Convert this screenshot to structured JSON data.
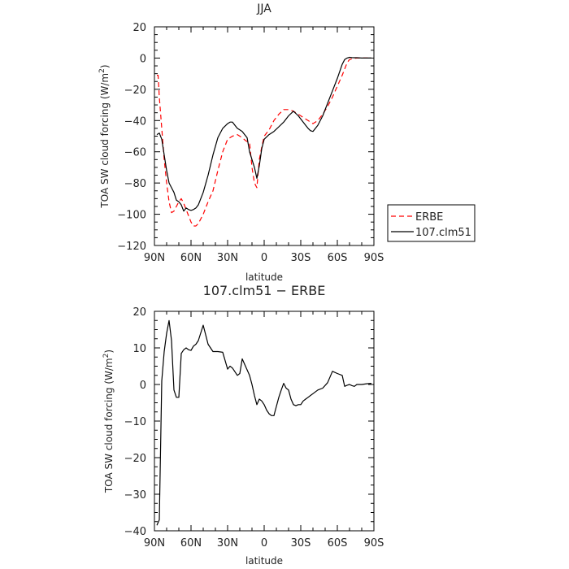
{
  "chart_data": [
    {
      "type": "line",
      "title": "JJA",
      "xlabel": "latitude",
      "ylabel_prefix": "TOA SW cloud forcing (W/m",
      "ylabel_sup": "2",
      "ylabel_suffix": ")",
      "xlim": [
        90,
        -90
      ],
      "ylim": [
        -120,
        20
      ],
      "xticks": [
        90,
        60,
        30,
        0,
        -30,
        -60,
        -90
      ],
      "xticklabels": [
        "90N",
        "60N",
        "30N",
        "0",
        "30S",
        "60S",
        "90S"
      ],
      "yticks": [
        20,
        0,
        -20,
        -40,
        -60,
        -80,
        -100,
        -120
      ],
      "yticklabels": [
        "20",
        "0",
        "−20",
        "−40",
        "−60",
        "−80",
        "−100",
        "−120"
      ],
      "legend": "outside-right",
      "series": [
        {
          "name": "ERBE",
          "color": "#ff0000",
          "dash": "dashed",
          "x": [
            88,
            87,
            86,
            84,
            82,
            80,
            78,
            76,
            74,
            72,
            70,
            68,
            66,
            64,
            62,
            60,
            58,
            56,
            54,
            50,
            46,
            42,
            38,
            34,
            30,
            26,
            22,
            18,
            15,
            12,
            10,
            8,
            6,
            4,
            2,
            0,
            -4,
            -8,
            -12,
            -16,
            -20,
            -24,
            -28,
            -30,
            -32,
            -34,
            -36,
            -38,
            -40,
            -44,
            -48,
            -52,
            -56,
            -60,
            -64,
            -66,
            -68,
            -70,
            -72,
            -74,
            -76,
            -78,
            -80,
            -84,
            -88
          ],
          "y": [
            -11,
            -11,
            -25,
            -45,
            -65,
            -80,
            -92,
            -99,
            -98,
            -95,
            -92,
            -90,
            -93,
            -97,
            -101,
            -105,
            -107.5,
            -107.5,
            -106,
            -100,
            -92,
            -85,
            -72,
            -60,
            -52,
            -50,
            -49,
            -51,
            -53,
            -54,
            -70,
            -80,
            -83,
            -65,
            -57,
            -50,
            -46,
            -40,
            -36,
            -33,
            -33,
            -34,
            -36,
            -37,
            -38,
            -39,
            -40,
            -41,
            -42,
            -40,
            -36,
            -31,
            -25,
            -18,
            -11,
            -7,
            -3,
            -1,
            -0.5,
            -0.2,
            0,
            0,
            0,
            0,
            0
          ]
        },
        {
          "name": "107.clm51",
          "color": "#000000",
          "dash": "solid",
          "x": [
            88,
            86,
            84,
            82,
            80,
            78,
            76,
            74,
            72,
            70,
            68,
            66,
            64,
            62,
            60,
            58,
            56,
            54,
            50,
            46,
            42,
            38,
            34,
            30,
            28,
            26,
            24,
            22,
            20,
            18,
            16,
            14,
            12,
            10,
            8,
            6,
            4,
            2,
            0,
            -4,
            -8,
            -12,
            -16,
            -20,
            -24,
            -28,
            -30,
            -32,
            -34,
            -36,
            -38,
            -40,
            -44,
            -48,
            -52,
            -56,
            -60,
            -64,
            -66,
            -68,
            -70,
            -72,
            -74,
            -76,
            -80,
            -84,
            -88
          ],
          "y": [
            -49,
            -48,
            -52,
            -62,
            -72,
            -80,
            -83,
            -86,
            -91,
            -92,
            -94,
            -98,
            -96,
            -97,
            -97.5,
            -97,
            -96,
            -94,
            -86,
            -75,
            -62,
            -51,
            -45,
            -42,
            -41,
            -41,
            -43,
            -45,
            -46,
            -47,
            -49,
            -51,
            -60,
            -65,
            -70,
            -77,
            -69,
            -58,
            -52,
            -49,
            -47,
            -44,
            -41,
            -37,
            -34,
            -37,
            -39,
            -41,
            -43,
            -45,
            -46.5,
            -47,
            -43,
            -37,
            -29,
            -21,
            -13,
            -4,
            -1,
            0,
            0.5,
            0.3,
            0.2,
            0.2,
            0,
            0,
            0
          ]
        }
      ]
    },
    {
      "type": "line",
      "title": "107.clm51 − ERBE",
      "xlabel": "latitude",
      "ylabel_prefix": "TOA SW cloud forcing (W/m",
      "ylabel_sup": "2",
      "ylabel_suffix": ")",
      "xlim": [
        90,
        -90
      ],
      "ylim": [
        -40,
        20
      ],
      "xticks": [
        90,
        60,
        30,
        0,
        -30,
        -60,
        -90
      ],
      "xticklabels": [
        "90N",
        "60N",
        "30N",
        "0",
        "30S",
        "60S",
        "90S"
      ],
      "yticks": [
        20,
        10,
        0,
        -10,
        -20,
        -30,
        -40
      ],
      "yticklabels": [
        "20",
        "10",
        "0",
        "−10",
        "−20",
        "−30",
        "−40"
      ],
      "series": [
        {
          "name": "",
          "color": "#000000",
          "dash": "solid",
          "x": [
            88,
            86,
            84,
            82,
            80,
            78,
            76,
            74,
            72,
            70,
            68,
            66,
            64,
            62,
            60,
            58,
            56,
            54,
            50,
            46,
            42,
            38,
            34,
            30,
            28,
            26,
            24,
            22,
            20,
            18,
            16,
            14,
            12,
            10,
            8,
            6,
            4,
            2,
            0,
            -2,
            -4,
            -6,
            -8,
            -10,
            -12,
            -14,
            -16,
            -18,
            -20,
            -22,
            -24,
            -26,
            -28,
            -30,
            -32,
            -34,
            -36,
            -40,
            -44,
            -48,
            -52,
            -56,
            -60,
            -64,
            -66,
            -68,
            -70,
            -72,
            -74,
            -76,
            -78,
            -80,
            -84,
            -88
          ],
          "y": [
            -38.5,
            -37,
            1,
            9,
            14,
            17.5,
            12,
            -1.5,
            -3.5,
            -3.5,
            8.5,
            9.5,
            10,
            9.5,
            9.3,
            10.5,
            11,
            12,
            16.2,
            11,
            9,
            9,
            8.8,
            4.2,
            5,
            4.5,
            3.5,
            2.5,
            3,
            7,
            5.5,
            4,
            2.5,
            0,
            -3,
            -5.5,
            -4,
            -4.5,
            -5.5,
            -7,
            -8,
            -8.5,
            -8.5,
            -6,
            -3.5,
            -1.5,
            0.3,
            -1,
            -1.5,
            -4,
            -5.5,
            -5.8,
            -5.5,
            -5.5,
            -4.5,
            -4,
            -3.5,
            -2.5,
            -1.5,
            -1,
            0.5,
            3.6,
            3,
            2.5,
            -0.5,
            -0.2,
            0,
            -0.3,
            -0.5,
            0,
            0,
            0,
            0.2,
            0.3
          ]
        }
      ]
    }
  ]
}
